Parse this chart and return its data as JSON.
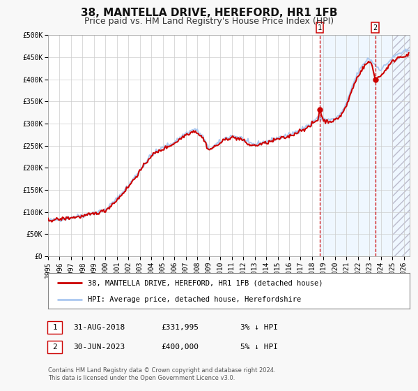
{
  "title": "38, MANTELLA DRIVE, HEREFORD, HR1 1FB",
  "subtitle": "Price paid vs. HM Land Registry's House Price Index (HPI)",
  "ylim": [
    0,
    500000
  ],
  "yticks": [
    0,
    50000,
    100000,
    150000,
    200000,
    250000,
    300000,
    350000,
    400000,
    450000,
    500000
  ],
  "ytick_labels": [
    "£0",
    "£50K",
    "£100K",
    "£150K",
    "£200K",
    "£250K",
    "£300K",
    "£350K",
    "£400K",
    "£450K",
    "£500K"
  ],
  "xlim_start": 1995.0,
  "xlim_end": 2026.5,
  "xticks": [
    1995,
    1996,
    1997,
    1998,
    1999,
    2000,
    2001,
    2002,
    2003,
    2004,
    2005,
    2006,
    2007,
    2008,
    2009,
    2010,
    2011,
    2012,
    2013,
    2014,
    2015,
    2016,
    2017,
    2018,
    2019,
    2020,
    2021,
    2022,
    2023,
    2024,
    2025,
    2026
  ],
  "hpi_color": "#aac8f0",
  "price_color": "#cc0000",
  "title_fontsize": 11,
  "subtitle_fontsize": 9,
  "tick_fontsize": 7,
  "background_color": "#f8f8f8",
  "plot_bg_color": "#ffffff",
  "grid_color": "#cccccc",
  "legend_label_price": "38, MANTELLA DRIVE, HEREFORD, HR1 1FB (detached house)",
  "legend_label_hpi": "HPI: Average price, detached house, Herefordshire",
  "annotation1_label": "1",
  "annotation1_date": 2018.667,
  "annotation1_value": 331995,
  "annotation1_text_date": "31-AUG-2018",
  "annotation1_text_price": "£331,995",
  "annotation1_text_pct": "3% ↓ HPI",
  "annotation2_label": "2",
  "annotation2_date": 2023.5,
  "annotation2_value": 400000,
  "annotation2_text_date": "30-JUN-2023",
  "annotation2_text_price": "£400,000",
  "annotation2_text_pct": "5% ↓ HPI",
  "vline1_x": 2018.667,
  "vline2_x": 2023.5,
  "shade_start": 2018.667,
  "shade_end": 2026.5,
  "hatch_start": 2025.0,
  "footer_line1": "Contains HM Land Registry data © Crown copyright and database right 2024.",
  "footer_line2": "This data is licensed under the Open Government Licence v3.0."
}
